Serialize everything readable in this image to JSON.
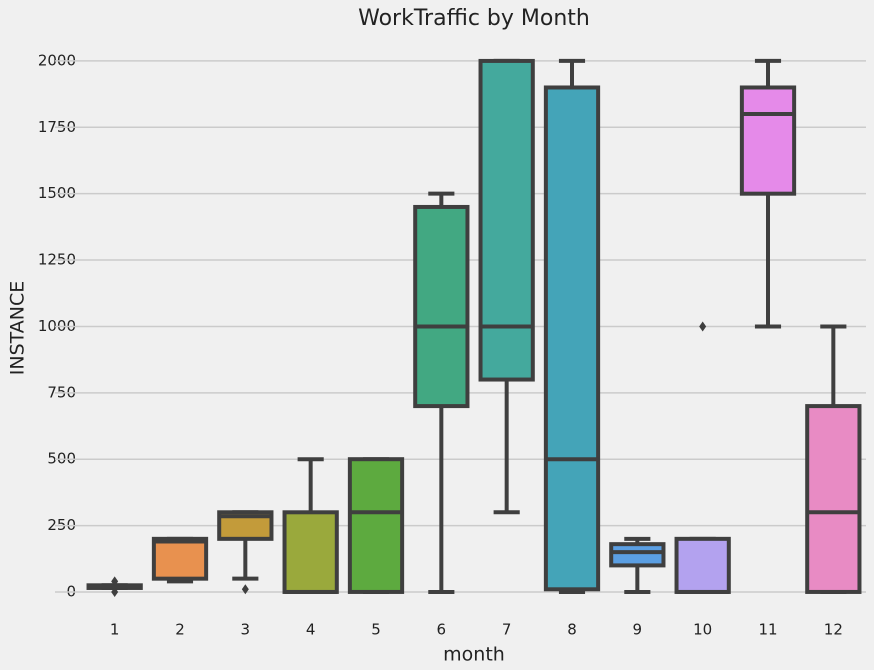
{
  "chart_data": {
    "type": "box",
    "title": "WorkTraffic by Month",
    "x_label": "month",
    "y_label": "INSTANCE",
    "categories": [
      "1",
      "2",
      "3",
      "4",
      "5",
      "6",
      "7",
      "8",
      "9",
      "10",
      "11",
      "12"
    ],
    "colors": [
      "#f1777f",
      "#e8914f",
      "#c39b3a",
      "#9aa93c",
      "#5daa3f",
      "#42a882",
      "#44a99d",
      "#44a4b8",
      "#5b9fe3",
      "#b3a2ef",
      "#e58ae9",
      "#e88bc4"
    ],
    "boxes": [
      {
        "whislo": 15,
        "q1": 15,
        "med": 20,
        "q3": 25,
        "whishi": 25,
        "fliers": [
          0,
          40
        ]
      },
      {
        "whislo": 40,
        "q1": 50,
        "med": 190,
        "q3": 200,
        "whishi": 200,
        "fliers": []
      },
      {
        "whislo": 50,
        "q1": 200,
        "med": 285,
        "q3": 300,
        "whishi": 300,
        "fliers": [
          10
        ]
      },
      {
        "whislo": 0,
        "q1": 0,
        "med": 0,
        "q3": 300,
        "whishi": 500,
        "fliers": []
      },
      {
        "whislo": 0,
        "q1": 0,
        "med": 300,
        "q3": 500,
        "whishi": 500,
        "fliers": []
      },
      {
        "whislo": 0,
        "q1": 700,
        "med": 1000,
        "q3": 1450,
        "whishi": 1500,
        "fliers": []
      },
      {
        "whislo": 300,
        "q1": 800,
        "med": 1000,
        "q3": 2000,
        "whishi": 2000,
        "fliers": []
      },
      {
        "whislo": 0,
        "q1": 10,
        "med": 500,
        "q3": 1900,
        "whishi": 2000,
        "fliers": []
      },
      {
        "whislo": 0,
        "q1": 100,
        "med": 150,
        "q3": 180,
        "whishi": 200,
        "fliers": []
      },
      {
        "whislo": 0,
        "q1": 0,
        "med": 0,
        "q3": 200,
        "whishi": 200,
        "fliers": [
          1000
        ]
      },
      {
        "whislo": 1000,
        "q1": 1500,
        "med": 1800,
        "q3": 1900,
        "whishi": 2000,
        "fliers": []
      },
      {
        "whislo": 0,
        "q1": 0,
        "med": 300,
        "q3": 700,
        "whishi": 1000,
        "fliers": []
      }
    ],
    "ylim": [
      -68,
      2060
    ],
    "yticks": [
      0,
      250,
      500,
      750,
      1000,
      1250,
      1500,
      1750,
      2000
    ],
    "grid": true
  }
}
